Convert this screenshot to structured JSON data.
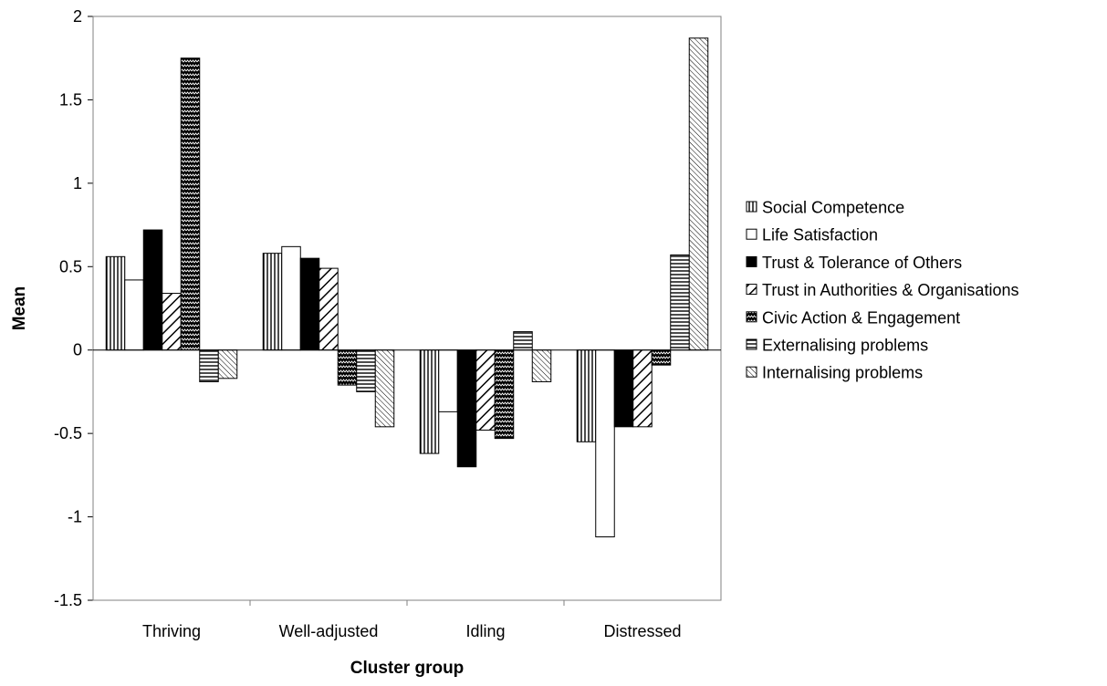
{
  "chart_data": {
    "type": "bar",
    "title": "",
    "xlabel": "Cluster group",
    "ylabel": "Mean",
    "ylim": [
      -1.5,
      2
    ],
    "yticks": [
      -1.5,
      -1,
      -0.5,
      0,
      0.5,
      1,
      1.5,
      2
    ],
    "ytick_labels": [
      "-1.5",
      "-1",
      "-0.5",
      "0",
      "0.5",
      "1",
      "1.5",
      "2"
    ],
    "grid": false,
    "legend_position": "right",
    "categories": [
      "Thriving",
      "Well-adjusted",
      "Idling",
      "Distressed"
    ],
    "series": [
      {
        "name": "Social Competence",
        "pattern": "vertical",
        "values": [
          0.56,
          0.58,
          -0.62,
          -0.55
        ]
      },
      {
        "name": "Life Satisfaction",
        "pattern": "white",
        "values": [
          0.42,
          0.62,
          -0.37,
          -1.12
        ]
      },
      {
        "name": "Trust & Tolerance of Others",
        "pattern": "solid",
        "values": [
          0.72,
          0.55,
          -0.7,
          -0.46
        ]
      },
      {
        "name": "Trust in Authorities & Organisations",
        "pattern": "diagonal",
        "values": [
          0.34,
          0.49,
          -0.48,
          -0.46
        ]
      },
      {
        "name": "Civic Action & Engagement",
        "pattern": "zigzag",
        "values": [
          1.75,
          -0.21,
          -0.53,
          -0.09
        ]
      },
      {
        "name": "Externalising problems",
        "pattern": "horizontal",
        "values": [
          -0.19,
          -0.25,
          0.11,
          0.57
        ]
      },
      {
        "name": "Internalising problems",
        "pattern": "fine-diagonal",
        "values": [
          -0.17,
          -0.46,
          -0.19,
          1.87
        ]
      }
    ],
    "colors": {
      "stroke": "#000000",
      "fill_dark": "#000000",
      "fill_light": "#ffffff"
    }
  }
}
